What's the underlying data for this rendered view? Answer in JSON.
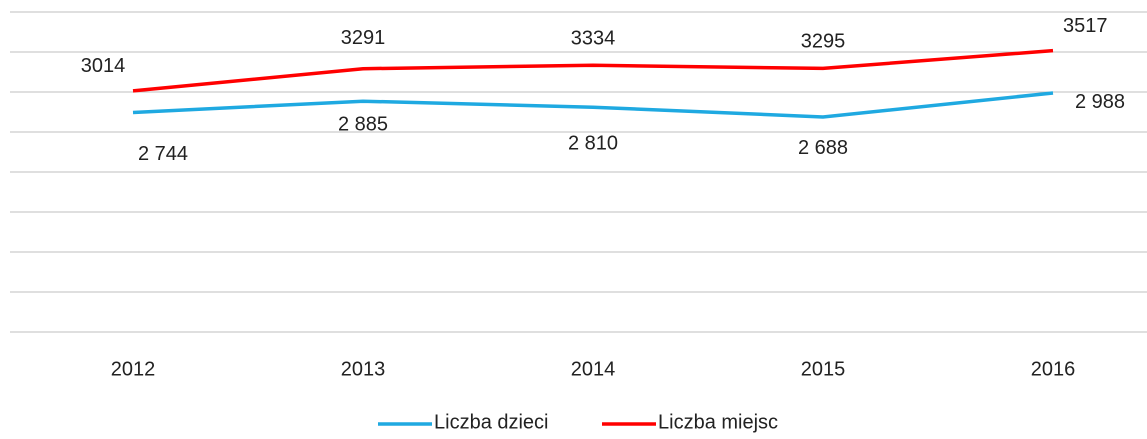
{
  "chart_data": {
    "type": "line",
    "categories": [
      "2012",
      "2013",
      "2014",
      "2015",
      "2016"
    ],
    "series": [
      {
        "name": "Liczba dzieci",
        "color": "#1fa9e1",
        "values": [
          2744,
          2885,
          2810,
          2688,
          2988
        ],
        "value_labels": [
          "2 744",
          "2 885",
          "2 810",
          "2 688",
          "2 988"
        ]
      },
      {
        "name": "Liczba miejsc",
        "color": "#ff0000",
        "values": [
          3014,
          3291,
          3334,
          3295,
          3517
        ]
      }
    ],
    "ylim": [
      0,
      4000
    ],
    "yticks": [
      0,
      500,
      1000,
      1500,
      2000,
      2500,
      3000,
      3500,
      4000
    ],
    "grid": true,
    "legend": "bottom"
  }
}
